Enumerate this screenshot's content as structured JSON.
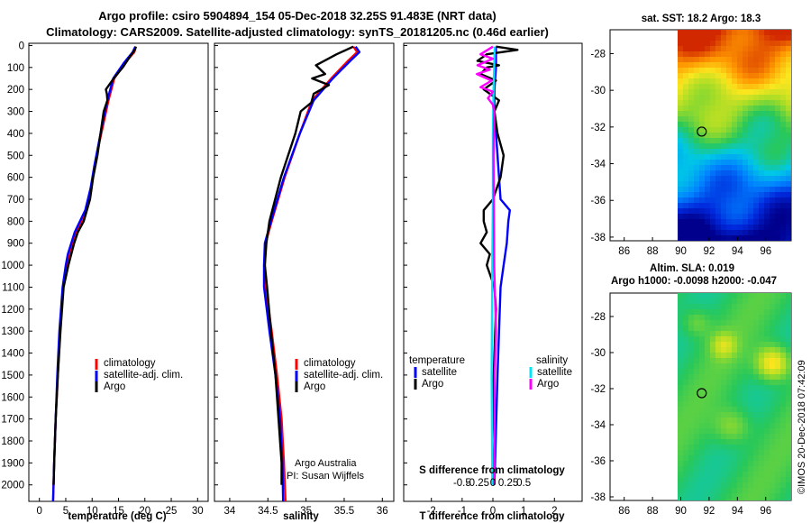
{
  "header": {
    "line1": "Argo profile: csiro 5904894_154 05-Dec-2018 32.25S 91.483E (NRT data)",
    "line2": "Climatology: CARS2009. Satellite-adjusted climatology: synTS_20181205.nc (0.46d earlier)"
  },
  "colors": {
    "climatology": "#ff0000",
    "satellite": "#0000ff",
    "argo": "#000000",
    "sat_diff": "#00e5ff",
    "sal_diff": "#ff00ff"
  },
  "chart_data": [
    {
      "type": "line",
      "id": "temperature",
      "xlabel": "temperature (deg C)",
      "ylabel": "",
      "xlim": [
        -2,
        32
      ],
      "ylim": [
        2075,
        -10
      ],
      "xticks": [
        "0",
        "5",
        "10",
        "15",
        "20",
        "25",
        "30"
      ],
      "yticks": [
        "0",
        "100",
        "200",
        "300",
        "400",
        "500",
        "600",
        "700",
        "800",
        "900",
        "1000",
        "1100",
        "1200",
        "1300",
        "1400",
        "1500",
        "1600",
        "1700",
        "1800",
        "1900",
        "2000"
      ],
      "legend": [
        "climatology",
        "satellite-adj. clim.",
        "Argo"
      ],
      "series": [
        {
          "name": "climatology",
          "depth": [
            5,
            30,
            80,
            150,
            250,
            350,
            450,
            550,
            650,
            750,
            850,
            950,
            1000,
            1100,
            1300,
            1500,
            1700,
            1900,
            2075
          ],
          "values": [
            18.3,
            18.0,
            16.2,
            14.2,
            13.1,
            12.2,
            11.3,
            10.5,
            9.8,
            8.9,
            7.0,
            5.6,
            5.2,
            4.5,
            3.9,
            3.5,
            3.1,
            2.8,
            2.6
          ]
        },
        {
          "name": "satellite-adj. clim.",
          "depth": [
            5,
            30,
            80,
            150,
            250,
            350,
            450,
            550,
            650,
            750,
            850,
            950,
            1000,
            1100,
            1300,
            1500,
            1700,
            1900,
            2075
          ],
          "values": [
            18.2,
            17.7,
            16.0,
            14.0,
            12.9,
            12.0,
            11.2,
            10.4,
            9.7,
            8.7,
            6.7,
            5.4,
            5.0,
            4.4,
            3.8,
            3.4,
            3.1,
            2.8,
            2.6
          ]
        },
        {
          "name": "Argo",
          "depth": [
            5,
            20,
            50,
            100,
            150,
            200,
            220,
            250,
            300,
            400,
            500,
            600,
            700,
            800,
            850,
            900,
            1000,
            1100,
            1300,
            1500,
            1700,
            1900,
            2000
          ],
          "values": [
            18.3,
            18.1,
            17.2,
            15.8,
            14.1,
            12.6,
            12.8,
            12.9,
            12.2,
            11.6,
            11.0,
            10.2,
            9.6,
            8.4,
            7.3,
            6.6,
            5.5,
            4.6,
            4.0,
            3.5,
            3.1,
            2.8,
            2.7
          ]
        }
      ]
    },
    {
      "type": "line",
      "id": "salinity",
      "xlabel": "salinity",
      "xlim": [
        33.8,
        36.15
      ],
      "ylim": [
        2075,
        -10
      ],
      "xticks": [
        "34",
        "34.5",
        "35",
        "35.5",
        "36"
      ],
      "legend": [
        "climatology",
        "satellite-adj. clim.",
        "Argo"
      ],
      "series": [
        {
          "name": "climatology",
          "depth": [
            5,
            30,
            70,
            150,
            250,
            400,
            600,
            800,
            900,
            1000,
            1100,
            1300,
            1500,
            1700,
            1900,
            2075
          ],
          "values": [
            35.62,
            35.67,
            35.55,
            35.33,
            35.08,
            34.92,
            34.72,
            34.55,
            34.47,
            34.46,
            34.47,
            34.55,
            34.62,
            34.68,
            34.71,
            34.73
          ]
        },
        {
          "name": "satellite-adj. clim.",
          "depth": [
            5,
            30,
            70,
            150,
            250,
            400,
            600,
            800,
            900,
            1000,
            1100,
            1300,
            1500,
            1700,
            1900,
            2075
          ],
          "values": [
            35.65,
            35.7,
            35.58,
            35.35,
            35.1,
            34.92,
            34.71,
            34.54,
            34.46,
            34.45,
            34.45,
            34.52,
            34.6,
            34.66,
            34.69,
            34.7
          ]
        },
        {
          "name": "Argo",
          "depth": [
            5,
            40,
            90,
            130,
            150,
            180,
            220,
            260,
            300,
            400,
            600,
            800,
            900,
            1000,
            1100,
            1300,
            1500,
            1700,
            1900,
            2000
          ],
          "values": [
            35.62,
            35.4,
            35.13,
            35.25,
            35.08,
            35.3,
            35.1,
            35.07,
            34.93,
            34.86,
            34.67,
            34.52,
            34.48,
            34.46,
            34.49,
            34.54,
            34.6,
            34.64,
            34.68,
            34.68
          ]
        }
      ]
    },
    {
      "type": "line",
      "id": "difference",
      "xlabel": "T difference from climatology",
      "xlabel2": "S difference from climatology",
      "xlim": [
        -2.9,
        2.9
      ],
      "ylim": [
        2075,
        -10
      ],
      "xticks": [
        "-2",
        "-1",
        "0",
        "1",
        "2"
      ],
      "sticks": [
        "-0.5",
        "-0.25",
        "0",
        "0.25",
        "0.5"
      ],
      "legend_titles": [
        "temperature",
        "salinity"
      ],
      "legend_left": [
        "satellite",
        "Argo"
      ],
      "legend_right": [
        "satellite",
        "Argo"
      ],
      "series": [
        {
          "name": "T satellite",
          "depth": [
            5,
            100,
            200,
            300,
            500,
            700,
            750,
            800,
            900,
            1000,
            1100,
            1300,
            1500,
            2000
          ],
          "values": [
            0.1,
            0.1,
            0.05,
            0.05,
            0.15,
            0.25,
            0.55,
            0.5,
            0.45,
            0.35,
            0.25,
            0.2,
            0.15,
            0.05
          ]
        },
        {
          "name": "T Argo",
          "depth": [
            5,
            20,
            40,
            70,
            90,
            100,
            130,
            160,
            200,
            250,
            300,
            400,
            500,
            600,
            700,
            750,
            800,
            850,
            900,
            950,
            1000,
            1100,
            1200,
            1400,
            1600,
            1800,
            2000
          ],
          "values": [
            0.1,
            0.8,
            -0.2,
            -0.5,
            0.2,
            -0.2,
            -0.4,
            0.1,
            -0.3,
            0.2,
            0.05,
            0.15,
            0.35,
            0.25,
            0.0,
            -0.3,
            -0.3,
            -0.2,
            -0.4,
            -0.1,
            -0.2,
            0.05,
            0.1,
            0.05,
            0.0,
            0.05,
            0.0
          ]
        },
        {
          "name": "S satellite",
          "depth": [
            5,
            100,
            200,
            400,
            700,
            1000,
            1500,
            2000
          ],
          "values": [
            0.03,
            0.02,
            0.01,
            0.0,
            0.0,
            -0.01,
            -0.02,
            -0.01
          ]
        },
        {
          "name": "S Argo",
          "depth": [
            5,
            40,
            60,
            90,
            110,
            130,
            160,
            190,
            210,
            240,
            270,
            300,
            500,
            1000,
            1300,
            1500,
            2000
          ],
          "values": [
            0.0,
            -0.2,
            0.0,
            -0.25,
            -0.05,
            -0.26,
            -0.02,
            -0.2,
            0.0,
            -0.08,
            0.0,
            0.02,
            0.01,
            0.02,
            0.05,
            0.03,
            0.02
          ]
        }
      ]
    },
    {
      "type": "heatmap",
      "id": "sst-map",
      "title": "sat. SST: 18.2 Argo: 18.3",
      "xticks": [
        "86",
        "88",
        "90",
        "92",
        "94",
        "96"
      ],
      "yticks": [
        "-28",
        "-30",
        "-32",
        "-34",
        "-36",
        "-38"
      ],
      "xlim": [
        85,
        97.8
      ],
      "ylim": [
        -38.2,
        -26.7
      ],
      "profile_location": [
        91.48,
        -32.25
      ]
    },
    {
      "type": "heatmap",
      "id": "sla-map",
      "title1": "Altim. SLA: 0.019",
      "title2": "Argo h1000: -0.0098 h2000: -0.047",
      "xticks": [
        "86",
        "88",
        "90",
        "92",
        "94",
        "96"
      ],
      "yticks": [
        "-28",
        "-30",
        "-32",
        "-34",
        "-36",
        "-38"
      ],
      "xlim": [
        85,
        97.8
      ],
      "ylim": [
        -38.2,
        -26.7
      ],
      "profile_location": [
        91.48,
        -32.25
      ]
    }
  ],
  "credit": {
    "line1": "Argo Australia",
    "line2": "PI: Susan Wijffels"
  },
  "stamp": "©IMOS 20-Dec-2018 07:42:09"
}
